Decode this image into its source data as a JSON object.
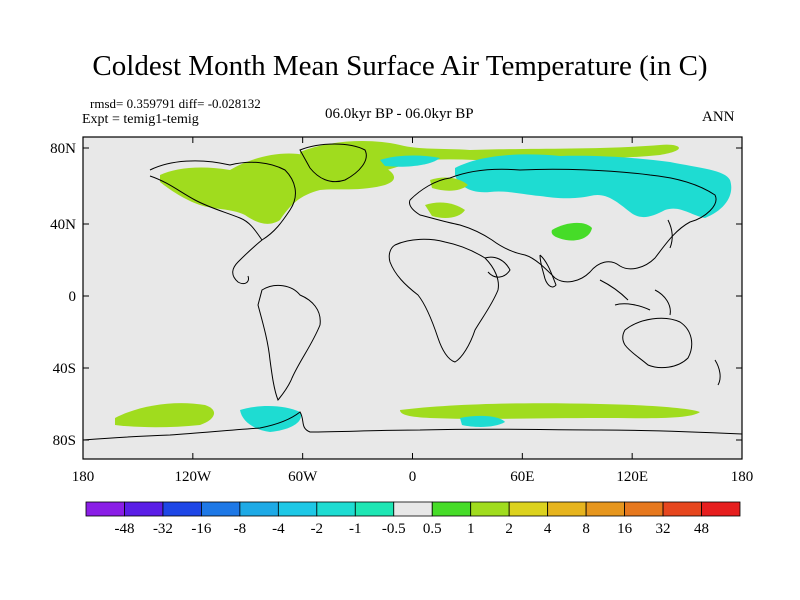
{
  "title": "Coldest Month Mean Surface Air Temperature (in C)",
  "subtitle_stats": "rmsd= 0.359791  diff= -0.028132",
  "experiment": "Expt = temig1-temig",
  "period": "06.0kyr BP - 06.0kyr BP",
  "season": "ANN",
  "axes": {
    "x_ticks": [
      "180",
      "120W",
      "60W",
      "0",
      "60E",
      "120E",
      "180"
    ],
    "y_ticks": [
      "80N",
      "40N",
      "0",
      "40S",
      "80S"
    ]
  },
  "colorbar": {
    "labels": [
      "-48",
      "-32",
      "-16",
      "-8",
      "-4",
      "-2",
      "-1",
      "-0.5",
      "0.5",
      "1",
      "2",
      "4",
      "8",
      "16",
      "32",
      "48"
    ],
    "colors": [
      "#8a1ee6",
      "#5a1ee6",
      "#1e46e6",
      "#1e78e6",
      "#1eaae6",
      "#1ec8e6",
      "#1edcd2",
      "#1ee6b4",
      "#e8e8e8",
      "#46dc28",
      "#a0dc1e",
      "#dcd21e",
      "#e6b41e",
      "#e6961e",
      "#e6781e",
      "#e6461e",
      "#e61e1e"
    ]
  },
  "map_colors": {
    "background": "#e8e8e8",
    "positive_small": "#a0dc1e",
    "positive_tiny": "#46dc28",
    "negative_small": "#1edcd2",
    "coast": "#000000"
  }
}
